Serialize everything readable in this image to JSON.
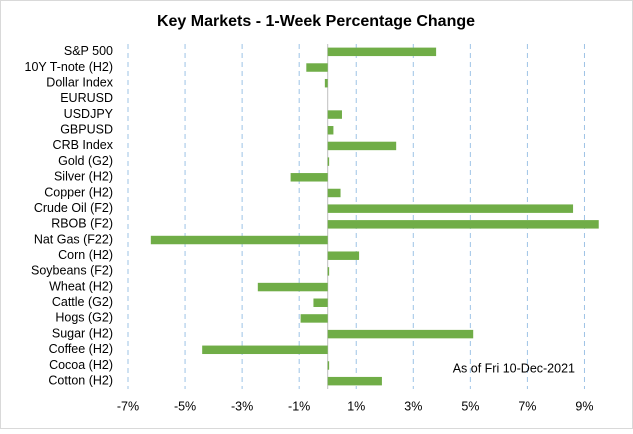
{
  "chart_data": {
    "type": "bar",
    "orientation": "horizontal",
    "title": "Key Markets - 1-Week Percentage Change",
    "annotation": "As of Fri 10-Dec-2021",
    "categories": [
      "S&P 500",
      "10Y T-note (H2)",
      "Dollar Index",
      "EURUSD",
      "USDJPY",
      "GBPUSD",
      "CRB Index",
      "Gold (G2)",
      "Silver (H2)",
      "Copper (H2)",
      "Crude Oil (F2)",
      "RBOB (F2)",
      "Nat Gas (F22)",
      "Corn (H2)",
      "Soybeans (F2)",
      "Wheat (H2)",
      "Cattle (G2)",
      "Hogs (G2)",
      "Sugar (H2)",
      "Coffee (H2)",
      "Cocoa (H2)",
      "Cotton (H2)"
    ],
    "values": [
      3.8,
      -0.75,
      -0.1,
      0.0,
      0.5,
      0.2,
      2.4,
      0.05,
      -1.3,
      0.45,
      8.6,
      9.5,
      -6.2,
      1.1,
      0.05,
      -2.45,
      -0.5,
      -0.95,
      5.1,
      -4.4,
      0.05,
      1.9
    ],
    "color": "#70ad47",
    "xlim": [
      -7,
      10
    ],
    "xticks": [
      {
        "value": -7,
        "label": "-7%"
      },
      {
        "value": -5,
        "label": "-5%"
      },
      {
        "value": -3,
        "label": "-3%"
      },
      {
        "value": -1,
        "label": "-1%"
      },
      {
        "value": 1,
        "label": "1%"
      },
      {
        "value": 3,
        "label": "3%"
      },
      {
        "value": 5,
        "label": "5%"
      },
      {
        "value": 7,
        "label": "7%"
      },
      {
        "value": 9,
        "label": "9%"
      }
    ],
    "grid": true
  }
}
